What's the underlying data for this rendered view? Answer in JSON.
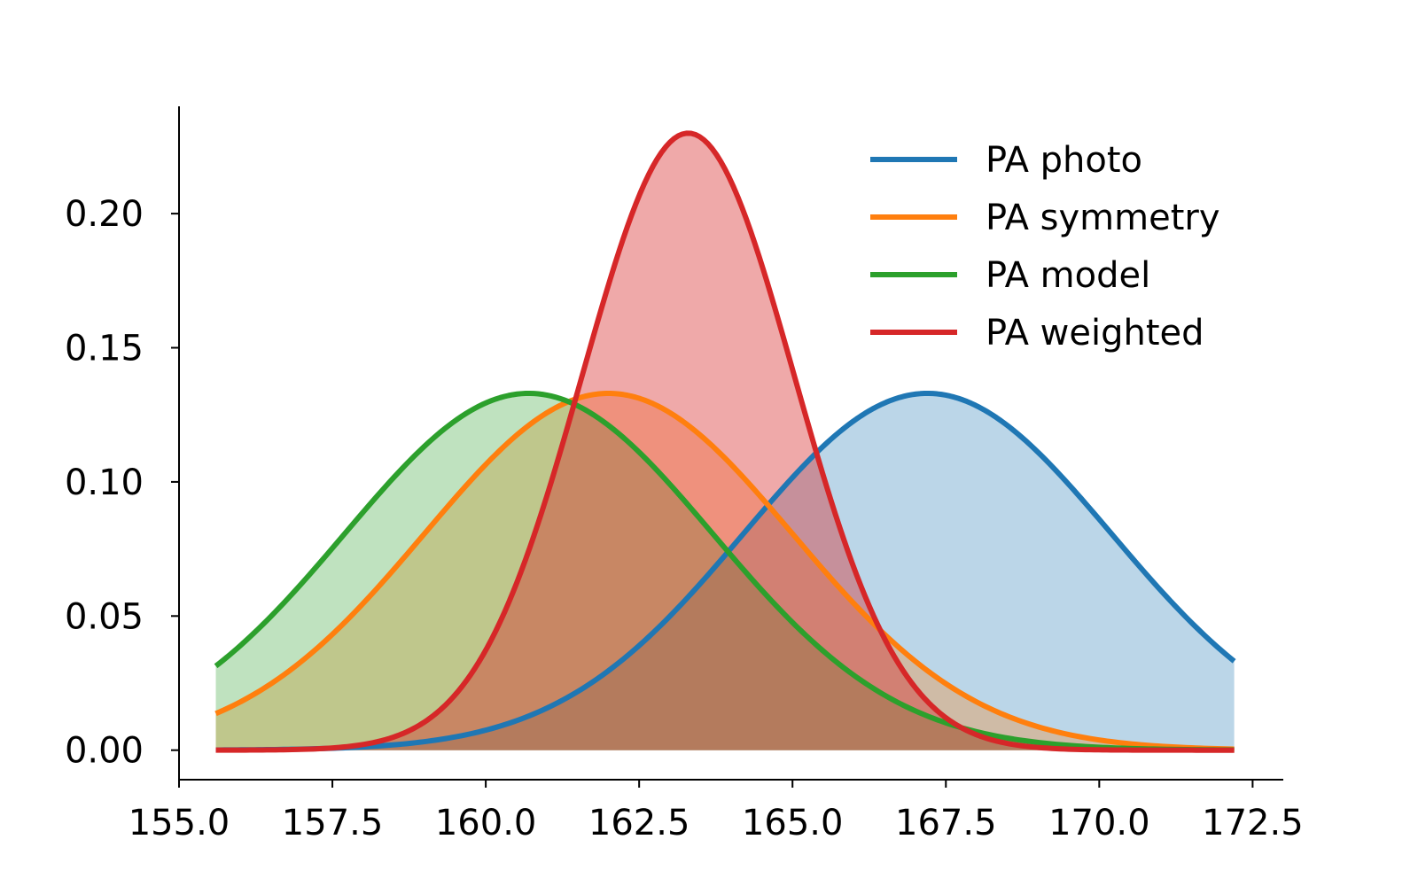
{
  "chart_data": {
    "type": "area",
    "title": "",
    "xlabel": "",
    "ylabel": "",
    "xlim": [
      155.0,
      173.0
    ],
    "ylim": [
      -0.011,
      0.24
    ],
    "x_range": [
      155.6,
      172.2
    ],
    "x_ticks": [
      155.0,
      157.5,
      160.0,
      162.5,
      165.0,
      167.5,
      170.0,
      172.5
    ],
    "x_tick_labels": [
      "155.0",
      "157.5",
      "160.0",
      "162.5",
      "165.0",
      "167.5",
      "170.0",
      "172.5"
    ],
    "y_ticks": [
      0.0,
      0.05,
      0.1,
      0.15,
      0.2
    ],
    "y_tick_labels": [
      "0.00",
      "0.05",
      "0.10",
      "0.15",
      "0.20"
    ],
    "grid": false,
    "legend": "top-right",
    "series": [
      {
        "name": "PA photo",
        "distribution": "normal",
        "mean": 167.2,
        "std": 3.0,
        "peak": 0.133,
        "color": "#1f77b4",
        "fill_opacity": 0.3
      },
      {
        "name": "PA symmetry",
        "distribution": "normal",
        "mean": 162.0,
        "std": 3.0,
        "peak": 0.133,
        "color": "#ff7f0e",
        "fill_opacity": 0.3
      },
      {
        "name": "PA model",
        "distribution": "normal",
        "mean": 160.7,
        "std": 3.0,
        "peak": 0.133,
        "color": "#2ca02c",
        "fill_opacity": 0.3
      },
      {
        "name": "PA weighted",
        "distribution": "normal",
        "mean": 163.3,
        "std": 1.73,
        "peak": 0.23,
        "color": "#d62728",
        "fill_opacity": 0.4
      }
    ]
  }
}
